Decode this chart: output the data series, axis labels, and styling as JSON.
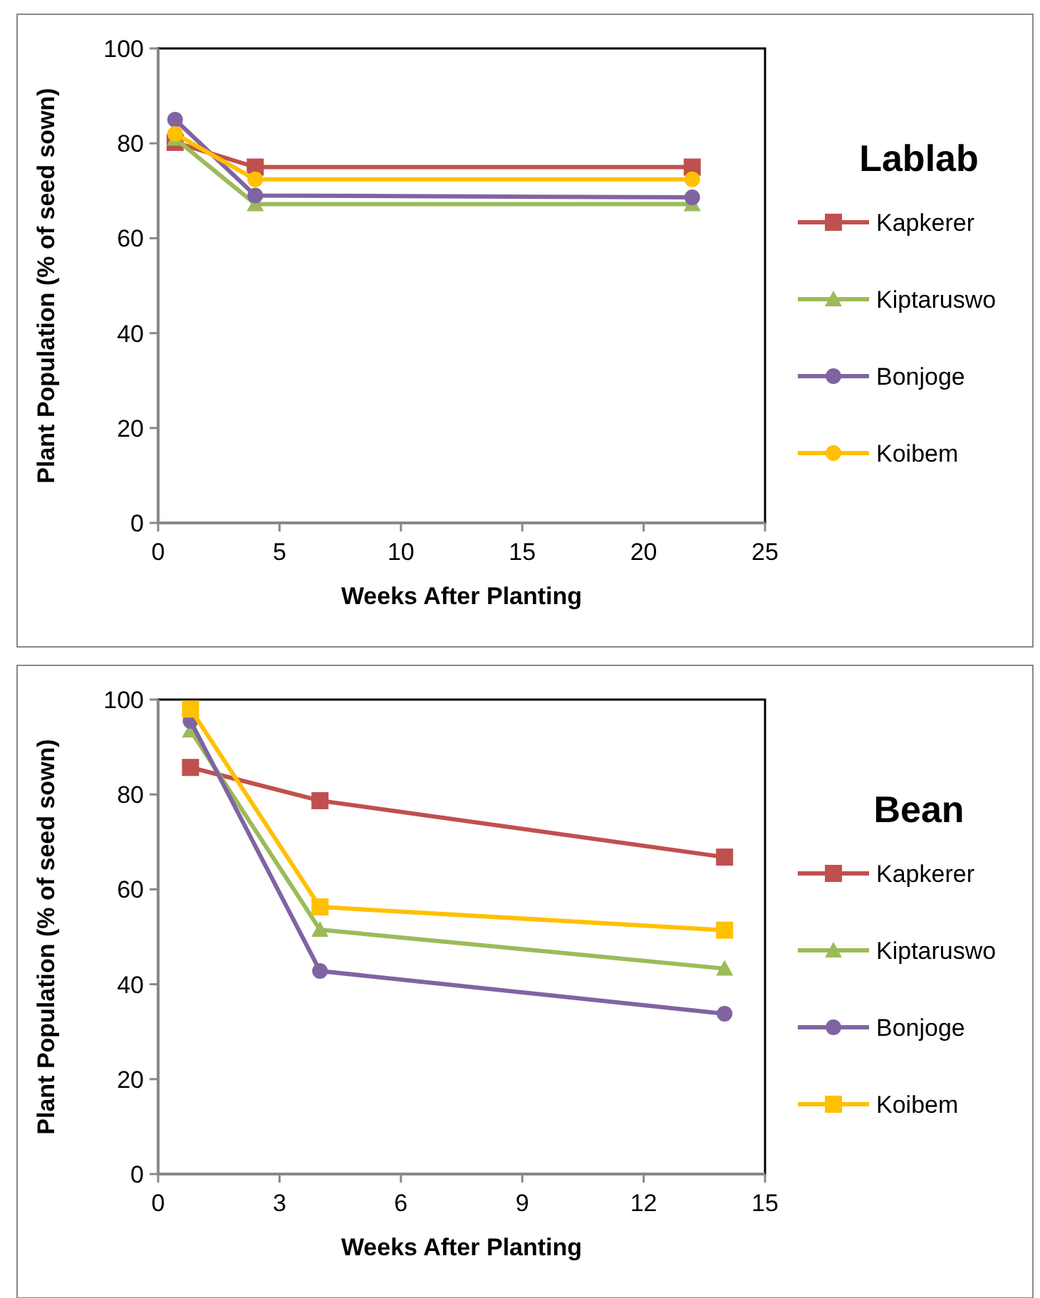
{
  "chart_data": [
    {
      "type": "line",
      "legend_title": "Lablab",
      "xlabel": "Weeks After Planting",
      "ylabel": "Plant Population (% of seed sown)",
      "x": [
        0.7,
        4,
        22
      ],
      "xlim": [
        0,
        25
      ],
      "xticks": [
        0,
        5,
        10,
        15,
        20,
        25
      ],
      "ylim": [
        0,
        100
      ],
      "yticks": [
        0,
        20,
        40,
        60,
        80,
        100
      ],
      "grid": false,
      "legend": "right",
      "series": [
        {
          "name": "Kapkerer",
          "color": "#c0504d",
          "marker": "square",
          "values": [
            80.2,
            75,
            75
          ]
        },
        {
          "name": "Kiptaruswo",
          "color": "#9bbb59",
          "marker": "triangle",
          "values": [
            81,
            67.2,
            67.2
          ]
        },
        {
          "name": "Bonjoge",
          "color": "#8064a2",
          "marker": "circle",
          "values": [
            85,
            69,
            68.6
          ]
        },
        {
          "name": "Koibem",
          "color": "#ffc000",
          "marker": "circle",
          "values": [
            82,
            72.4,
            72.4
          ]
        }
      ]
    },
    {
      "type": "line",
      "legend_title": "Bean",
      "xlabel": "Weeks After Planting",
      "ylabel": "Plant  Population (% of seed sown)",
      "x": [
        0.8,
        4,
        14
      ],
      "xlim": [
        0,
        15
      ],
      "xticks": [
        0,
        3,
        6,
        9,
        12,
        15
      ],
      "ylim": [
        0,
        100
      ],
      "yticks": [
        0,
        20,
        40,
        60,
        80,
        100
      ],
      "grid": false,
      "legend": "right",
      "series": [
        {
          "name": "Kapkerer",
          "color": "#c0504d",
          "marker": "square",
          "values": [
            85.7,
            78.7,
            66.8
          ]
        },
        {
          "name": "Kiptaruswo",
          "color": "#9bbb59",
          "marker": "triangle",
          "values": [
            93.5,
            51.5,
            43.3
          ]
        },
        {
          "name": "Bonjoge",
          "color": "#8064a2",
          "marker": "circle",
          "values": [
            95.5,
            42.8,
            33.8
          ]
        },
        {
          "name": "Koibem",
          "color": "#ffc000",
          "marker": "square",
          "values": [
            98,
            56.3,
            51.4
          ]
        }
      ]
    }
  ]
}
